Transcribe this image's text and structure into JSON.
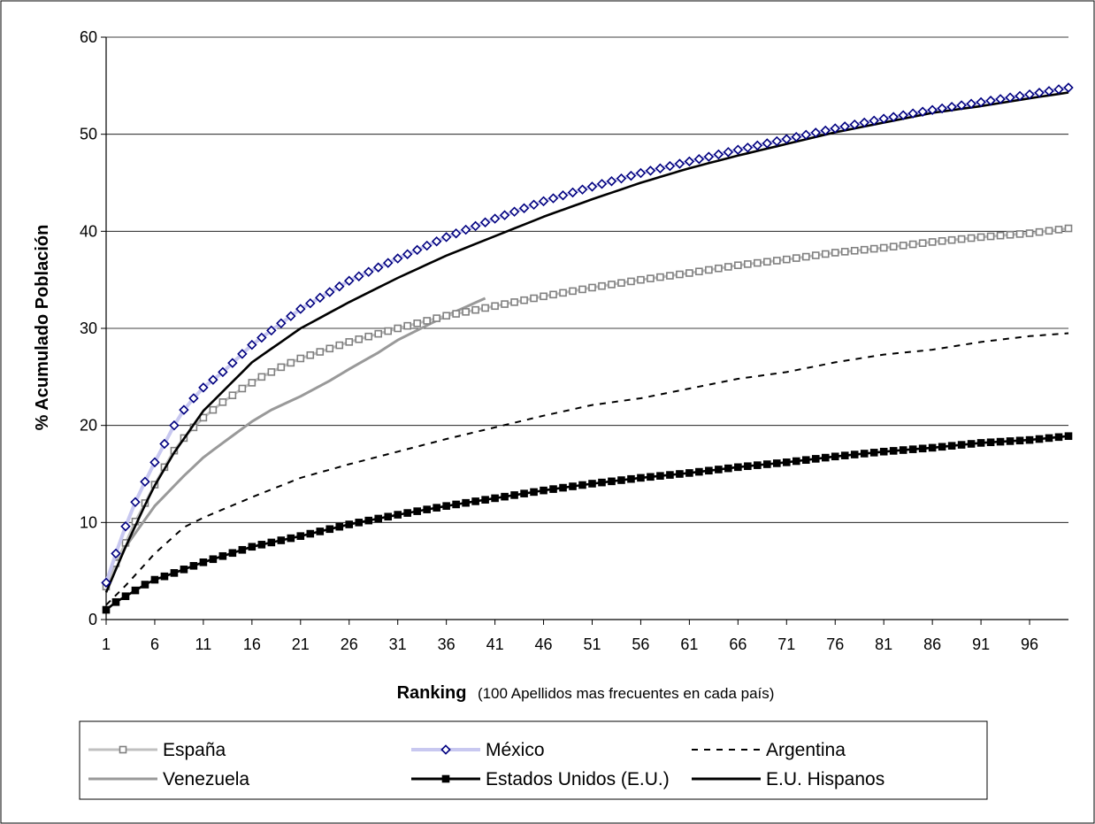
{
  "chart_data": {
    "type": "line",
    "title": "",
    "ylabel": "% Acumulado Población",
    "xlabel": "Ranking",
    "xlabel_note": "(100 Apellidos mas frecuentes en cada país)",
    "xlim": [
      1,
      100
    ],
    "ylim": [
      0,
      60
    ],
    "y_ticks": [
      0,
      10,
      20,
      30,
      40,
      50,
      60
    ],
    "x_ticks": [
      1,
      6,
      11,
      16,
      21,
      26,
      31,
      36,
      41,
      46,
      51,
      56,
      61,
      66,
      71,
      76,
      81,
      86,
      91,
      96
    ],
    "grid": "horizontal",
    "legend_position": "bottom",
    "series": [
      {
        "name": "España",
        "color": "#c0c0c0",
        "marker": "square",
        "marker_color": "#808080",
        "points": [
          [
            1,
            3.4
          ],
          [
            2,
            5.8
          ],
          [
            3,
            7.9
          ],
          [
            4,
            10.1
          ],
          [
            5,
            12
          ],
          [
            6,
            13.9
          ],
          [
            7,
            15.7
          ],
          [
            8,
            17.4
          ],
          [
            9,
            18.7
          ],
          [
            10,
            19.8
          ],
          [
            11,
            20.8
          ],
          [
            12,
            21.6
          ],
          [
            13,
            22.4
          ],
          [
            14,
            23.1
          ],
          [
            15,
            23.8
          ],
          [
            16,
            24.4
          ],
          [
            17,
            25
          ],
          [
            18,
            25.5
          ],
          [
            19,
            26
          ],
          [
            21,
            26.9
          ],
          [
            26,
            28.6
          ],
          [
            31,
            30
          ],
          [
            36,
            31.3
          ],
          [
            41,
            32.3
          ],
          [
            46,
            33.3
          ],
          [
            51,
            34.2
          ],
          [
            56,
            35
          ],
          [
            61,
            35.7
          ],
          [
            66,
            36.5
          ],
          [
            71,
            37.1
          ],
          [
            76,
            37.8
          ],
          [
            81,
            38.3
          ],
          [
            86,
            38.9
          ],
          [
            91,
            39.4
          ],
          [
            96,
            39.8
          ],
          [
            100,
            40.3
          ]
        ]
      },
      {
        "name": "México",
        "color": "#c8c8f0",
        "marker": "diamond",
        "marker_color": "#000080",
        "points": [
          [
            1,
            3.8
          ],
          [
            2,
            6.8
          ],
          [
            3,
            9.6
          ],
          [
            4,
            12.1
          ],
          [
            5,
            14.2
          ],
          [
            6,
            16.2
          ],
          [
            7,
            18.1
          ],
          [
            8,
            20
          ],
          [
            9,
            21.6
          ],
          [
            10,
            22.8
          ],
          [
            11,
            23.9
          ],
          [
            13,
            25.5
          ],
          [
            16,
            28.3
          ],
          [
            21,
            32
          ],
          [
            26,
            34.9
          ],
          [
            31,
            37.2
          ],
          [
            36,
            39.4
          ],
          [
            41,
            41.3
          ],
          [
            46,
            43.1
          ],
          [
            51,
            44.6
          ],
          [
            56,
            46
          ],
          [
            61,
            47.2
          ],
          [
            66,
            48.4
          ],
          [
            71,
            49.5
          ],
          [
            76,
            50.6
          ],
          [
            81,
            51.6
          ],
          [
            86,
            52.5
          ],
          [
            91,
            53.3
          ],
          [
            96,
            54.1
          ],
          [
            100,
            54.8
          ]
        ]
      },
      {
        "name": "Argentina",
        "color": "#000000",
        "dash": "dashed",
        "marker": "none",
        "points": [
          [
            1,
            1.5
          ],
          [
            3,
            3.5
          ],
          [
            6,
            6.8
          ],
          [
            9,
            9.5
          ],
          [
            11,
            10.5
          ],
          [
            16,
            12.6
          ],
          [
            21,
            14.6
          ],
          [
            26,
            16
          ],
          [
            31,
            17.3
          ],
          [
            36,
            18.6
          ],
          [
            41,
            19.8
          ],
          [
            46,
            21
          ],
          [
            51,
            22.1
          ],
          [
            56,
            22.8
          ],
          [
            61,
            23.8
          ],
          [
            66,
            24.8
          ],
          [
            71,
            25.5
          ],
          [
            76,
            26.5
          ],
          [
            81,
            27.3
          ],
          [
            86,
            27.8
          ],
          [
            91,
            28.6
          ],
          [
            96,
            29.2
          ],
          [
            100,
            29.5
          ]
        ]
      },
      {
        "name": "Venezuela",
        "color": "#999999",
        "marker": "none",
        "points": [
          [
            1,
            3
          ],
          [
            3,
            7.5
          ],
          [
            6,
            11.7
          ],
          [
            9,
            14.8
          ],
          [
            11,
            16.7
          ],
          [
            13,
            18.2
          ],
          [
            16,
            20.4
          ],
          [
            18,
            21.6
          ],
          [
            21,
            23
          ],
          [
            24,
            24.6
          ],
          [
            26,
            25.8
          ],
          [
            29,
            27.5
          ],
          [
            31,
            28.8
          ],
          [
            34,
            30.3
          ],
          [
            36,
            31.3
          ],
          [
            38,
            32.2
          ],
          [
            40,
            33.1
          ]
        ]
      },
      {
        "name": "Estados Unidos (E.U.)",
        "color": "#000000",
        "marker": "square",
        "marker_color": "#000000",
        "points": [
          [
            1,
            1
          ],
          [
            2,
            1.8
          ],
          [
            3,
            2.4
          ],
          [
            4,
            3
          ],
          [
            5,
            3.6
          ],
          [
            6,
            4.1
          ],
          [
            8,
            4.8
          ],
          [
            11,
            5.9
          ],
          [
            16,
            7.5
          ],
          [
            21,
            8.6
          ],
          [
            26,
            9.8
          ],
          [
            31,
            10.8
          ],
          [
            36,
            11.7
          ],
          [
            41,
            12.5
          ],
          [
            46,
            13.3
          ],
          [
            51,
            14
          ],
          [
            56,
            14.6
          ],
          [
            61,
            15.1
          ],
          [
            66,
            15.7
          ],
          [
            71,
            16.2
          ],
          [
            76,
            16.8
          ],
          [
            81,
            17.3
          ],
          [
            86,
            17.7
          ],
          [
            91,
            18.2
          ],
          [
            96,
            18.5
          ],
          [
            100,
            18.9
          ]
        ]
      },
      {
        "name": "E.U. Hispanos",
        "color": "#000000",
        "marker": "none",
        "points": [
          [
            1,
            2.8
          ],
          [
            3,
            7.5
          ],
          [
            5,
            11.8
          ],
          [
            6,
            13.8
          ],
          [
            8,
            17.2
          ],
          [
            11,
            21.5
          ],
          [
            13,
            23.5
          ],
          [
            16,
            26.5
          ],
          [
            21,
            30
          ],
          [
            26,
            32.7
          ],
          [
            31,
            35.2
          ],
          [
            36,
            37.5
          ],
          [
            41,
            39.5
          ],
          [
            46,
            41.5
          ],
          [
            51,
            43.3
          ],
          [
            56,
            45
          ],
          [
            61,
            46.5
          ],
          [
            66,
            47.8
          ],
          [
            71,
            49
          ],
          [
            76,
            50.2
          ],
          [
            81,
            51.2
          ],
          [
            86,
            52.2
          ],
          [
            91,
            52.9
          ],
          [
            96,
            53.7
          ],
          [
            100,
            54.3
          ]
        ]
      }
    ]
  }
}
